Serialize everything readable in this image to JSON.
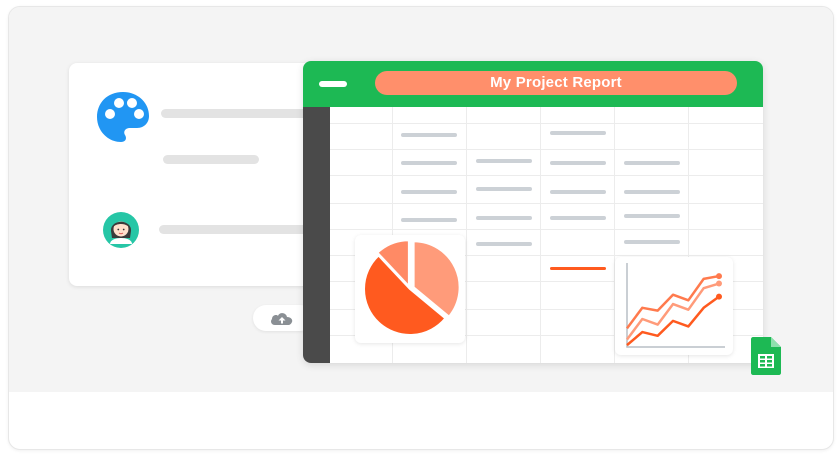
{
  "report": {
    "title": "My Project Report"
  },
  "colors": {
    "brand_green": "#1db954",
    "title_pill": "#ff8f6b",
    "accent_orange": "#ff5a1f",
    "palette_blue": "#2196f3",
    "rail": "#4a4a4a"
  },
  "icons": {
    "palette": "palette-icon",
    "avatar": "avatar-icon",
    "cloud": "cloud-upload-icon",
    "sheets": "google-sheets-icon"
  },
  "chart_data": [
    {
      "type": "pie",
      "slices": [
        {
          "value": 0.36,
          "color": "#ff9b7a"
        },
        {
          "value": 0.52,
          "color": "#ff5a1f"
        },
        {
          "value": 0.12,
          "color": "#ff8a65"
        }
      ]
    },
    {
      "type": "line",
      "x": [
        0,
        1,
        2,
        3,
        4,
        5,
        6
      ],
      "series": [
        {
          "values": [
            2.0,
            4.2,
            3.9,
            5.6,
            5.0,
            7.3,
            7.6
          ],
          "color": "#ff7a4d"
        },
        {
          "values": [
            0.8,
            3.0,
            2.4,
            4.6,
            4.0,
            6.3,
            6.8
          ],
          "color": "#ff9b7a"
        },
        {
          "values": [
            0.2,
            1.6,
            1.2,
            2.8,
            2.2,
            4.2,
            5.4
          ],
          "color": "#ff5a1f"
        }
      ],
      "ylim": [
        0,
        9
      ]
    }
  ]
}
